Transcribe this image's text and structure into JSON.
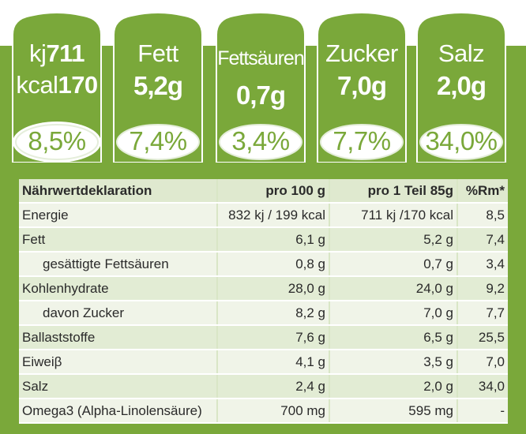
{
  "gda": [
    {
      "line1_label": "kj",
      "line1_value": "711",
      "line2_label": "kcal",
      "line2_value": "170",
      "percent": "8,5%"
    },
    {
      "name": "Fett",
      "value": "5,2g",
      "percent": "7,4%"
    },
    {
      "name": "Fettsäuren",
      "value": "0,7g",
      "percent": "3,4%"
    },
    {
      "name": "Zucker",
      "value": "7,0g",
      "percent": "7,7%"
    },
    {
      "name": "Salz",
      "value": "2,0g",
      "percent": "34,0%"
    }
  ],
  "table": {
    "headers": [
      "Nährwertdeklaration",
      "pro 100 g",
      "pro 1 Teil 85g",
      "%Rm*"
    ],
    "rows": [
      {
        "label": "Energie",
        "per100": "832 kj  / 199 kcal",
        "perPortion": "711 kj  /170 kcal",
        "rm": "8,5",
        "indent": false
      },
      {
        "label": "Fett",
        "per100": "6,1 g",
        "perPortion": "5,2 g",
        "rm": "7,4",
        "indent": false
      },
      {
        "label": "gesättigte Fettsäuren",
        "per100": "0,8 g",
        "perPortion": "0,7 g",
        "rm": "3,4",
        "indent": true
      },
      {
        "label": "Kohlenhydrate",
        "per100": "28,0 g",
        "perPortion": "24,0 g",
        "rm": "9,2",
        "indent": false
      },
      {
        "label": "davon Zucker",
        "per100": "8,2 g",
        "perPortion": "7,0 g",
        "rm": "7,7",
        "indent": true
      },
      {
        "label": "Ballaststoffe",
        "per100": "7,6 g",
        "perPortion": "6,5 g",
        "rm": "25,5",
        "indent": false
      },
      {
        "label": "Eiweiβ",
        "per100": "4,1 g",
        "perPortion": "3,5 g",
        "rm": "7,0",
        "indent": false
      },
      {
        "label": "Salz",
        "per100": "2,4 g",
        "perPortion": "2,0 g",
        "rm": "34,0",
        "indent": false
      },
      {
        "label": "Omega3 (Alpha-Linolensäure)",
        "per100": "700 mg",
        "perPortion": "595 mg",
        "rm": "-",
        "indent": false
      }
    ]
  },
  "colors": {
    "brand_green": "#7aa83a",
    "light_green": "#dfe9cf"
  }
}
